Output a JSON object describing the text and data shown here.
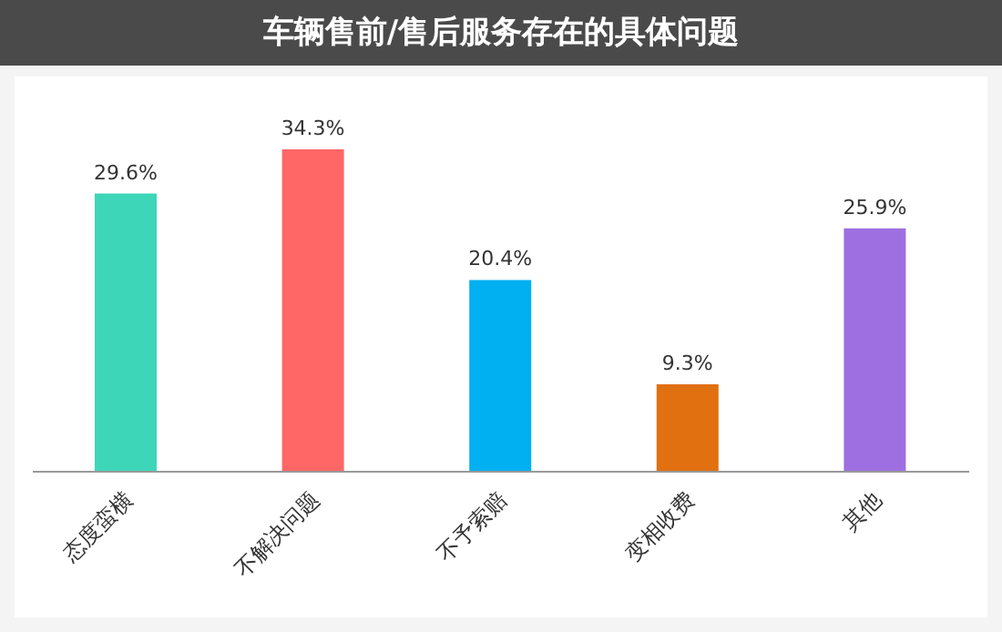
{
  "chart_data": {
    "type": "bar",
    "title": "车辆售前/售后服务存在的具体问题",
    "categories": [
      "态度蛮横",
      "不解决问题",
      "不予索赔",
      "变相收费",
      "其他"
    ],
    "values": [
      29.6,
      34.3,
      20.4,
      9.3,
      25.9
    ],
    "colors": [
      "#3dd6b8",
      "#ff6666",
      "#00b0f0",
      "#e07010",
      "#9e6fe0"
    ],
    "value_labels": [
      "29.6%",
      "34.3%",
      "20.4%",
      "9.3%",
      "25.9%"
    ],
    "grid": false,
    "legend": false
  }
}
